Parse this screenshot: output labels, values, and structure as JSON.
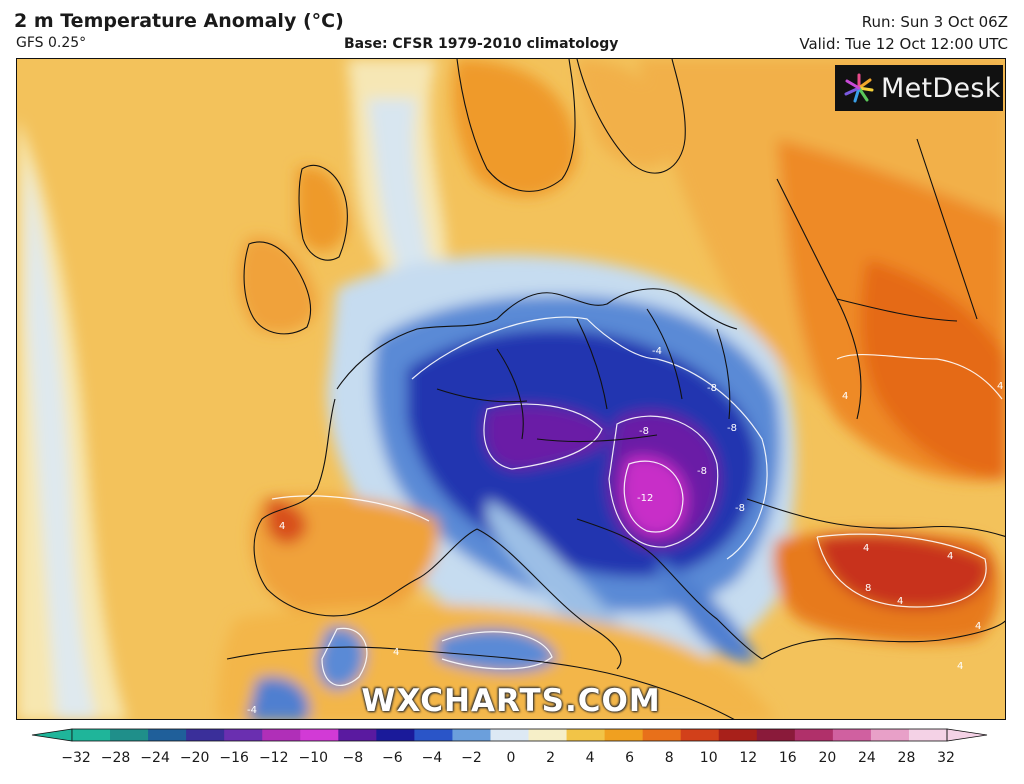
{
  "header": {
    "title": "2 m Temperature Anomaly (°C)",
    "model": "GFS 0.25°",
    "base": "Base: CFSR 1979-2010 climatology",
    "run": "Run: Sun 3 Oct 06Z",
    "valid": "Valid: Tue 12 Oct 12:00 UTC"
  },
  "logo": {
    "text": "MetDesk"
  },
  "watermark": "WXCHARTS.COM",
  "colorbar": {
    "ticks": [
      "−32",
      "−28",
      "−24",
      "−20",
      "−16",
      "−12",
      "−10",
      "−8",
      "−6",
      "−4",
      "−2",
      "0",
      "2",
      "4",
      "6",
      "8",
      "10",
      "12",
      "16",
      "20",
      "24",
      "28",
      "32"
    ],
    "colors": [
      "#1fb59a",
      "#1f8f8a",
      "#1f5f9a",
      "#3a2f9a",
      "#6a2fb0",
      "#b02fb8",
      "#d23ad6",
      "#5a1aa0",
      "#1a1a9a",
      "#2a55c8",
      "#6b9fdc",
      "#dde9f4",
      "#f6efc8",
      "#f2c447",
      "#f0a020",
      "#e8701a",
      "#d2401a",
      "#a8201a",
      "#8a1a3a",
      "#b0306a",
      "#d060a0",
      "#e8a0c8",
      "#f4d2e6"
    ]
  },
  "map": {
    "contour_labels": [
      "-4",
      "-8",
      "-8",
      "-8",
      "-8",
      "-12",
      "-8",
      "4",
      "4",
      "8",
      "4",
      "4",
      "4",
      "4",
      "-4",
      "4",
      "4",
      "4"
    ],
    "colors": {
      "ocean_warm": "#f3c25b",
      "pale": "#f7e7b0",
      "cold_light": "#c8ddef",
      "cold_mid": "#5f8fd9",
      "cold_deep": "#1f2fa8",
      "purple": "#6a1fa6",
      "magenta": "#c82fc8",
      "warm": "#ef9a2a",
      "hot": "#e0661a",
      "red": "#c8321a"
    }
  }
}
